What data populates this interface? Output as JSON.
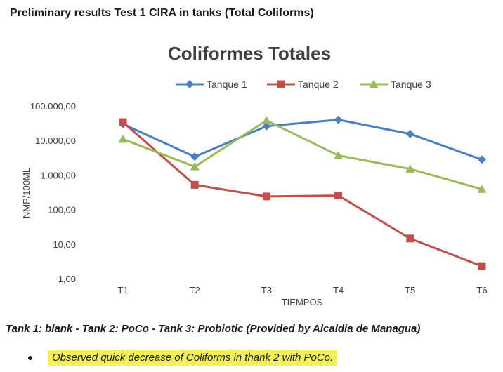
{
  "header": {
    "title": "Preliminary results Test 1 CIRA in tanks (Total Coliforms)"
  },
  "chart_data": {
    "type": "line",
    "title": "Coliformes Totales",
    "xlabel": "TIEMPOS",
    "ylabel": "NMP/100ML",
    "log_scale_y": true,
    "ylim": [
      1,
      100000
    ],
    "categories": [
      "T1",
      "T2",
      "T3",
      "T4",
      "T5",
      "T6"
    ],
    "y_ticks": [
      "1,00",
      "10,00",
      "100,00",
      "1.000,00",
      "10.000,00",
      "100.000,00"
    ],
    "legend_position": "top",
    "grid": false,
    "series": [
      {
        "name": "Tanque 1",
        "color": "#4a7ec4",
        "marker": "diamond",
        "values": [
          30000,
          3400,
          26000,
          40000,
          15500,
          2800
        ]
      },
      {
        "name": "Tanque 2",
        "color": "#c0504d",
        "marker": "square",
        "values": [
          34000,
          520,
          240,
          255,
          14.5,
          2.3
        ]
      },
      {
        "name": "Tanque 3",
        "color": "#9bbb59",
        "marker": "triangle",
        "values": [
          11000,
          1750,
          38000,
          3700,
          1500,
          390
        ]
      }
    ]
  },
  "footer": {
    "tanks_note": "Tank 1: blank - Tank 2: PoCo - Tank 3: Probiotic (Provided by Alcaldia de Managua)",
    "observation": "Observed quick decrease of Coliforms in thank 2 with PoCo."
  }
}
